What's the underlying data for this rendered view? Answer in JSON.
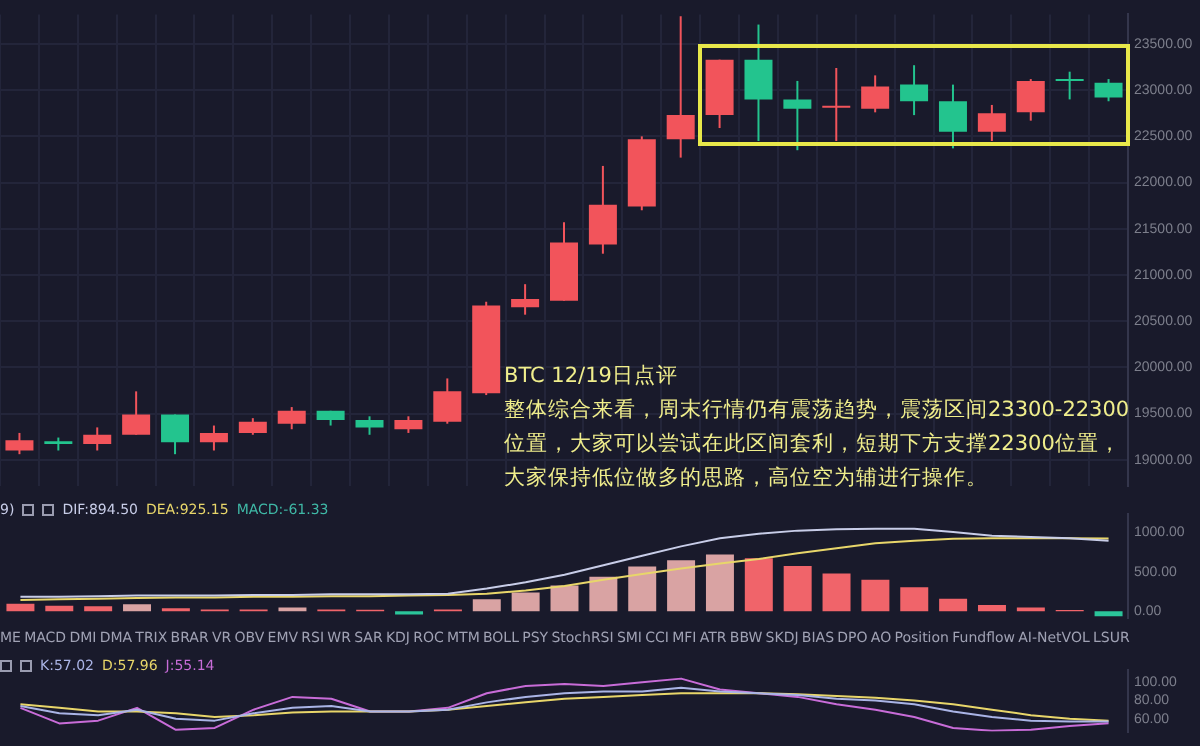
{
  "chart_data": [
    {
      "type": "candlestick",
      "annotations": [
        "BTC 12/19日点评",
        "整体综合来看，周末行情仍有震荡趋势，震荡区间23300-22300",
        "位置，大家可以尝试在此区间套利，短期下方支撑22300位置，",
        "大家保持低位做多的思路，高位空为辅进行操作。"
      ],
      "categories": [
        null,
        null,
        null,
        null,
        null,
        null,
        null,
        null,
        null,
        null,
        null,
        null,
        null,
        null,
        null,
        null,
        null,
        null,
        null,
        null,
        null,
        null,
        null,
        null,
        null,
        null,
        null,
        null,
        null
      ],
      "ohlc": [
        [
          19100,
          19290,
          19060,
          19210
        ],
        [
          19200,
          19240,
          19100,
          19170
        ],
        [
          19170,
          19350,
          19100,
          19270
        ],
        [
          19270,
          19740,
          19270,
          19490
        ],
        [
          19490,
          19490,
          19060,
          19190
        ],
        [
          19190,
          19370,
          19100,
          19290
        ],
        [
          19290,
          19450,
          19270,
          19410
        ],
        [
          19390,
          19570,
          19330,
          19530
        ],
        [
          19530,
          19530,
          19370,
          19430
        ],
        [
          19430,
          19470,
          19270,
          19350
        ],
        [
          19330,
          19470,
          19290,
          19430
        ],
        [
          19410,
          19880,
          19390,
          19740
        ],
        [
          19720,
          20710,
          19700,
          20670
        ],
        [
          20650,
          20900,
          20570,
          20740
        ],
        [
          20720,
          21570,
          20720,
          21350
        ],
        [
          21330,
          22180,
          21230,
          21760
        ],
        [
          21740,
          22500,
          21700,
          22470
        ],
        [
          22470,
          23800,
          22270,
          22730
        ],
        [
          22730,
          23330,
          22590,
          23330
        ],
        [
          23330,
          23710,
          22450,
          22900
        ],
        [
          22900,
          23100,
          22350,
          22800
        ],
        [
          22810,
          23240,
          22450,
          22820
        ],
        [
          22800,
          23160,
          22760,
          23040
        ],
        [
          23060,
          23270,
          22730,
          22880
        ],
        [
          22880,
          23060,
          22370,
          22550
        ],
        [
          22550,
          22840,
          22450,
          22750
        ],
        [
          22760,
          23120,
          22670,
          23100
        ],
        [
          23100,
          23200,
          22900,
          23110
        ],
        [
          23080,
          23120,
          22880,
          22920
        ]
      ],
      "colors": [
        "#f2545b",
        "#23c48e",
        "#f2545b",
        "#f2545b",
        "#23c48e",
        "#f2545b",
        "#f2545b",
        "#f2545b",
        "#23c48e",
        "#23c48e",
        "#f2545b",
        "#f2545b",
        "#f2545b",
        "#f2545b",
        "#f2545b",
        "#f2545b",
        "#f2545b",
        "#f2545b",
        "#f2545b",
        "#23c48e",
        "#23c48e",
        "#f2545b",
        "#f2545b",
        "#23c48e",
        "#23c48e",
        "#f2545b",
        "#f2545b",
        "#23c48e",
        "#23c48e"
      ],
      "ylim": [
        18720,
        23820
      ],
      "yticks": [
        {
          "value": 19000,
          "label": "19000.00"
        },
        {
          "value": 19500,
          "label": "19500.00"
        },
        {
          "value": 20000,
          "label": "20000.00"
        },
        {
          "value": 20500,
          "label": "20500.00"
        },
        {
          "value": 21000,
          "label": "21000.00"
        },
        {
          "value": 21500,
          "label": "21500.00"
        },
        {
          "value": 22000,
          "label": "22000.00"
        },
        {
          "value": 22500,
          "label": "22500.00"
        },
        {
          "value": 23000,
          "label": "23000.00"
        },
        {
          "value": 23500,
          "label": "23500.00"
        }
      ],
      "grid": true,
      "tick_labels": "y"
    },
    {
      "type": "bar",
      "annotations": [
        "9)"
      ],
      "legend": "top left",
      "tick_labels": "y",
      "categories": [
        null,
        null,
        null,
        null,
        null,
        null,
        null,
        null,
        null,
        null,
        null,
        null,
        null,
        null,
        null,
        null,
        null,
        null,
        null,
        null,
        null,
        null,
        null,
        null,
        null,
        null,
        null,
        null,
        null
      ],
      "series": [
        {
          "name": "MACD:-61.33",
          "type": "bar",
          "color": "#3fb8a6",
          "colors": [
            "#f0646a",
            "#f0646a",
            "#f0646a",
            "#d9a3a3",
            "#f0646a",
            "#f0646a",
            "#f0646a",
            "#d9a3a3",
            "#f0646a",
            "#f0646a",
            "#2bc59a",
            "#f0646a",
            "#d9a3a3",
            "#d9a3a3",
            "#d9a3a3",
            "#d9a3a3",
            "#d9a3a3",
            "#d9a3a3",
            "#d9a3a3",
            "#f0646a",
            "#f0646a",
            "#f0646a",
            "#f0646a",
            "#f0646a",
            "#f0646a",
            "#f0646a",
            "#f0646a",
            "#f0646a",
            "#2bc59a"
          ],
          "values": [
            96,
            72,
            64,
            88,
            40,
            24,
            24,
            48,
            24,
            20,
            -40,
            24,
            152,
            240,
            328,
            440,
            568,
            648,
            720,
            672,
            576,
            480,
            400,
            304,
            160,
            80,
            48,
            16,
            -61.33
          ]
        },
        {
          "name": "DIF:894.50",
          "type": "line",
          "color": "#c8cde8",
          "values": [
            184,
            184,
            192,
            200,
            200,
            200,
            208,
            208,
            216,
            216,
            216,
            224,
            288,
            368,
            464,
            584,
            704,
            824,
            928,
            984,
            1024,
            1040,
            1048,
            1048,
            1008,
            960,
            944,
            928,
            894.5
          ]
        },
        {
          "name": "DEA:925.15",
          "type": "line",
          "color": "#e8d66a",
          "values": [
            144,
            152,
            160,
            168,
            176,
            176,
            184,
            184,
            192,
            192,
            200,
            208,
            224,
            264,
            320,
            400,
            472,
            544,
            608,
            664,
            736,
            800,
            864,
            896,
            920,
            928,
            928,
            928,
            925.15
          ]
        }
      ],
      "ylim": [
        -80,
        1230
      ],
      "yticks": [
        {
          "value": 0,
          "label": "0.00"
        },
        {
          "value": 500,
          "label": "500.00"
        },
        {
          "value": 1000,
          "label": "1000.00"
        }
      ]
    },
    {
      "type": "other",
      "annotations": [
        "ME",
        "MACD",
        "DMI",
        "DMA",
        "TRIX",
        "BRAR",
        "VR",
        "OBV",
        "EMV",
        "RSI",
        "WR",
        "SAR",
        "KDJ",
        "ROC",
        "MTM",
        "BOLL",
        "PSY",
        "StochRSI",
        "SMI",
        "CCI",
        "MFI",
        "ATR",
        "BBW",
        "SKDJ",
        "BIAS",
        "DPO",
        "AO",
        "Position",
        "Fundflow",
        "AI-NetVOL",
        "LSUR"
      ]
    },
    {
      "type": "line",
      "legend": "top left",
      "tick_labels": "y",
      "categories": [
        null,
        null,
        null,
        null,
        null,
        null,
        null,
        null,
        null,
        null,
        null,
        null,
        null,
        null,
        null,
        null,
        null,
        null,
        null,
        null,
        null,
        null,
        null,
        null,
        null,
        null,
        null,
        null,
        null
      ],
      "series": [
        {
          "name": "K:57.02",
          "color": "#aab4e6",
          "values": [
            74,
            66,
            64,
            70,
            60,
            58,
            66,
            72,
            74,
            68,
            68,
            70,
            78,
            84,
            88,
            90,
            90,
            94,
            90,
            88,
            86,
            82,
            80,
            76,
            68,
            62,
            58,
            57,
            57.02
          ]
        },
        {
          "name": "D:57.96",
          "color": "#e8d66a",
          "values": [
            76,
            72,
            68,
            68,
            66,
            62,
            64,
            67,
            68,
            68,
            68,
            70,
            74,
            78,
            82,
            84,
            86,
            88,
            88,
            88,
            87,
            85,
            83,
            80,
            76,
            70,
            64,
            60,
            57.96
          ]
        },
        {
          "name": "J:55.14",
          "color": "#c86cd8",
          "values": [
            72,
            55,
            58,
            72,
            48,
            50,
            70,
            84,
            82,
            68,
            68,
            72,
            88,
            96,
            98,
            96,
            100,
            104,
            92,
            88,
            84,
            76,
            70,
            62,
            50,
            47,
            48,
            52,
            55.14
          ]
        }
      ],
      "ylim": [
        46,
        113
      ],
      "yticks": [
        {
          "value": 60,
          "label": "60.00"
        },
        {
          "value": 80,
          "label": "80.00"
        },
        {
          "value": 100,
          "label": "100.00"
        }
      ]
    }
  ]
}
